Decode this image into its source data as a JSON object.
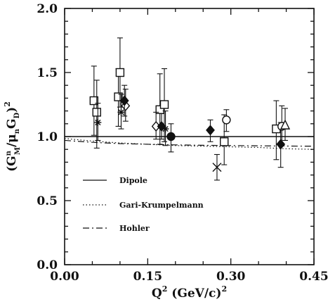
{
  "chart_data": {
    "type": "scatter",
    "title": "",
    "xlabel": {
      "base": "Q",
      "sup": "2",
      "rest": " (GeV/c)",
      "sup2": "2"
    },
    "ylabel": {
      "open": "(G",
      "g1_sup": "n",
      "g1_sub": "M",
      "slash": "/",
      "mu": "μ",
      "mu_sub": "n",
      "g2": "G",
      "g2_sub": "D",
      "close": ")",
      "outer_sup": "2"
    },
    "xlim": [
      0.0,
      0.45
    ],
    "ylim": [
      0.0,
      2.0
    ],
    "xticks": [
      "0.00",
      "0.15",
      "0.30",
      "0.45"
    ],
    "xtick_values": [
      0.0,
      0.15,
      0.3,
      0.45
    ],
    "yticks": [
      "0.0",
      "0.5",
      "1.0",
      "1.5",
      "2.0"
    ],
    "ytick_values": [
      0.0,
      0.5,
      1.0,
      1.5,
      2.0
    ],
    "grid": false,
    "legend_placement": "lower-left",
    "legend": [
      {
        "label": "Dipole",
        "style": "solid"
      },
      {
        "label": "Gari-Krumpelmann",
        "style": "dotted"
      },
      {
        "label": "Hohler",
        "style": "dashdot"
      }
    ],
    "curves": [
      {
        "style": "solid",
        "x": [
          0.0,
          0.45
        ],
        "y": [
          1.0,
          1.0
        ]
      },
      {
        "style": "dotted",
        "x": [
          0.0,
          0.05,
          0.1,
          0.15,
          0.2,
          0.25,
          0.3,
          0.35,
          0.4,
          0.45
        ],
        "y": [
          0.985,
          0.965,
          0.95,
          0.94,
          0.93,
          0.925,
          0.92,
          0.915,
          0.905,
          0.9
        ]
      },
      {
        "style": "dashdot",
        "x": [
          0.0,
          0.05,
          0.1,
          0.15,
          0.2,
          0.25,
          0.3,
          0.35,
          0.4,
          0.45
        ],
        "y": [
          0.97,
          0.955,
          0.945,
          0.94,
          0.935,
          0.932,
          0.93,
          0.928,
          0.926,
          0.925
        ]
      }
    ],
    "series": [
      {
        "marker": "square-open",
        "points": [
          {
            "x": 0.053,
            "y": 1.28,
            "lo": 1.01,
            "hi": 1.55
          },
          {
            "x": 0.058,
            "y": 1.19,
            "lo": 0.91,
            "hi": 1.44
          },
          {
            "x": 0.097,
            "y": 1.31,
            "lo": 1.08,
            "hi": 1.53
          },
          {
            "x": 0.1,
            "y": 1.5,
            "lo": 1.23,
            "hi": 1.77
          },
          {
            "x": 0.172,
            "y": 1.21,
            "lo": 0.94,
            "hi": 1.49
          },
          {
            "x": 0.18,
            "y": 1.25,
            "lo": 0.96,
            "hi": 1.53
          },
          {
            "x": 0.288,
            "y": 0.96,
            "lo": 0.78,
            "hi": 1.17
          },
          {
            "x": 0.382,
            "y": 1.06,
            "lo": 0.82,
            "hi": 1.28
          }
        ]
      },
      {
        "marker": "star",
        "points": [
          {
            "x": 0.06,
            "y": 1.11,
            "lo": 0.97,
            "hi": 1.26
          },
          {
            "x": 0.102,
            "y": 1.19,
            "lo": 1.06,
            "hi": 1.33
          },
          {
            "x": 0.182,
            "y": 1.06,
            "lo": 0.93,
            "hi": 1.2
          }
        ]
      },
      {
        "marker": "diamond-open",
        "points": [
          {
            "x": 0.11,
            "y": 1.24,
            "lo": 1.12,
            "hi": 1.37
          },
          {
            "x": 0.165,
            "y": 1.08,
            "lo": 0.98,
            "hi": 1.19
          }
        ]
      },
      {
        "marker": "diamond-filled",
        "points": [
          {
            "x": 0.108,
            "y": 1.28,
            "lo": 1.16,
            "hi": 1.4
          },
          {
            "x": 0.175,
            "y": 1.08,
            "lo": 0.98,
            "hi": 1.18
          },
          {
            "x": 0.263,
            "y": 1.05,
            "lo": 0.96,
            "hi": 1.13
          },
          {
            "x": 0.39,
            "y": 0.94,
            "lo": 0.76,
            "hi": 1.11
          }
        ]
      },
      {
        "marker": "circle-filled",
        "points": [
          {
            "x": 0.192,
            "y": 1.0,
            "lo": 0.88,
            "hi": 1.1
          }
        ]
      },
      {
        "marker": "cross",
        "points": [
          {
            "x": 0.275,
            "y": 0.76,
            "lo": 0.66,
            "hi": 0.86
          }
        ]
      },
      {
        "marker": "circle-open",
        "points": [
          {
            "x": 0.292,
            "y": 1.13,
            "lo": 1.04,
            "hi": 1.21
          },
          {
            "x": 0.392,
            "y": 1.08,
            "lo": 0.93,
            "hi": 1.24
          }
        ]
      },
      {
        "marker": "triangle-open",
        "points": [
          {
            "x": 0.398,
            "y": 1.09,
            "lo": 0.97,
            "hi": 1.22
          }
        ]
      }
    ]
  }
}
